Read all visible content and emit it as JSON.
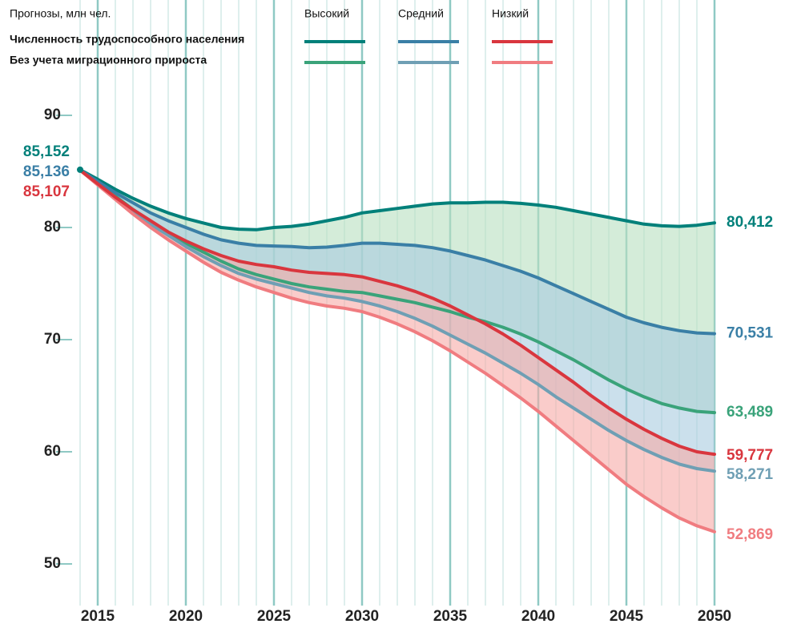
{
  "chart_data": {
    "type": "line",
    "title": "Прогнозы, млн чел.",
    "x": [
      2014,
      2015,
      2016,
      2017,
      2018,
      2019,
      2020,
      2021,
      2022,
      2023,
      2024,
      2025,
      2026,
      2027,
      2028,
      2029,
      2030,
      2031,
      2032,
      2033,
      2034,
      2035,
      2036,
      2037,
      2038,
      2039,
      2040,
      2041,
      2042,
      2043,
      2044,
      2045,
      2046,
      2047,
      2048,
      2049,
      2050
    ],
    "xlim": [
      2014,
      2050
    ],
    "xticks": [
      2015,
      2020,
      2025,
      2030,
      2035,
      2040,
      2045,
      2050
    ],
    "ylim": [
      47,
      100
    ],
    "yticks": [
      50,
      60,
      70,
      80,
      90
    ],
    "groups": [
      {
        "name": "Численность трудоспособного населения",
        "series": [
          {
            "name": "Высокий",
            "color": "#00807a",
            "fill": "#b7dfc0",
            "start_label": "85,152",
            "end_label": "80,412",
            "values": [
              85.152,
              84.3,
              83.4,
              82.6,
              81.9,
              81.3,
              80.8,
              80.4,
              80.0,
              79.85,
              79.8,
              80.0,
              80.1,
              80.3,
              80.6,
              80.9,
              81.3,
              81.5,
              81.7,
              81.9,
              82.1,
              82.2,
              82.2,
              82.25,
              82.25,
              82.15,
              82.0,
              81.8,
              81.5,
              81.2,
              80.9,
              80.6,
              80.3,
              80.15,
              80.1,
              80.2,
              80.412
            ]
          },
          {
            "name": "Средний",
            "color": "#3a7fa6",
            "fill": "#a9cbe0",
            "start_label": "85,136",
            "end_label": "70,531",
            "values": [
              85.136,
              84.1,
              83.1,
              82.2,
              81.3,
              80.6,
              80.0,
              79.4,
              78.9,
              78.6,
              78.4,
              78.35,
              78.3,
              78.2,
              78.25,
              78.4,
              78.6,
              78.6,
              78.5,
              78.4,
              78.2,
              77.9,
              77.5,
              77.1,
              76.6,
              76.1,
              75.5,
              74.8,
              74.1,
              73.4,
              72.7,
              72.0,
              71.5,
              71.1,
              70.8,
              70.6,
              70.531
            ]
          },
          {
            "name": "Низкий",
            "color": "#d9363e",
            "fill": "#f6aaa7",
            "start_label": "85,107",
            "end_label": "59,777",
            "values": [
              85.107,
              83.9,
              82.7,
              81.6,
              80.6,
              79.6,
              78.8,
              78.1,
              77.5,
              77.0,
              76.7,
              76.5,
              76.2,
              76.0,
              75.9,
              75.8,
              75.6,
              75.2,
              74.8,
              74.3,
              73.7,
              73.0,
              72.2,
              71.4,
              70.5,
              69.5,
              68.4,
              67.3,
              66.2,
              65.0,
              63.9,
              62.9,
              62.0,
              61.2,
              60.5,
              60.0,
              59.777
            ]
          }
        ]
      },
      {
        "name": "Без учета миграционного прироста",
        "series": [
          {
            "color": "#3aa37a",
            "end_label": "63,489",
            "values": [
              85.152,
              84.0,
              82.8,
              81.6,
              80.5,
              79.5,
              78.6,
              77.8,
              77.0,
              76.3,
              75.8,
              75.4,
              75.0,
              74.7,
              74.5,
              74.3,
              74.2,
              73.9,
              73.6,
              73.3,
              72.9,
              72.5,
              72.0,
              71.6,
              71.1,
              70.5,
              69.8,
              69.0,
              68.2,
              67.3,
              66.4,
              65.6,
              64.9,
              64.3,
              63.9,
              63.6,
              63.489
            ]
          },
          {
            "color": "#6f9fb4",
            "end_label": "58,271",
            "values": [
              85.136,
              83.9,
              82.7,
              81.5,
              80.3,
              79.3,
              78.3,
              77.4,
              76.6,
              75.9,
              75.4,
              75.0,
              74.6,
              74.2,
              73.9,
              73.7,
              73.4,
              73.0,
              72.5,
              71.9,
              71.2,
              70.4,
              69.6,
              68.8,
              67.9,
              67.0,
              66.0,
              64.9,
              63.9,
              62.9,
              61.9,
              61.0,
              60.2,
              59.5,
              58.9,
              58.5,
              58.271
            ]
          },
          {
            "color": "#f07c80",
            "end_label": "52,869",
            "values": [
              85.107,
              83.8,
              82.5,
              81.2,
              80.0,
              78.9,
              77.9,
              76.9,
              76.0,
              75.3,
              74.7,
              74.2,
              73.7,
              73.3,
              73.0,
              72.8,
              72.5,
              72.0,
              71.4,
              70.7,
              69.9,
              69.0,
              68.0,
              67.0,
              65.9,
              64.8,
              63.6,
              62.3,
              61.0,
              59.7,
              58.4,
              57.1,
              56.0,
              55.0,
              54.1,
              53.4,
              52.869
            ]
          }
        ]
      }
    ]
  }
}
